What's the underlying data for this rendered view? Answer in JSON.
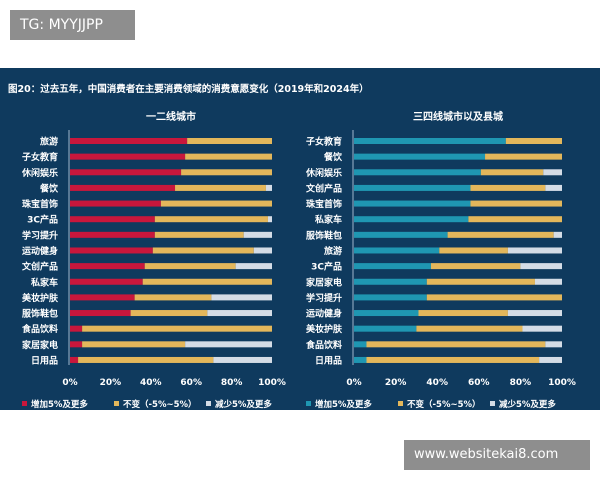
{
  "badge": "TG: MYYJJPP",
  "watermark": "www.websitekai8.com",
  "chart_data": {
    "title": "图20：过去五年，中国消费者在主要消费领域的消费意愿变化（2019年和2024年）",
    "type": "bar",
    "stacked": true,
    "orientation": "horizontal",
    "legend_labels": [
      "增加5%及更多",
      "不变（-5%~5%）",
      "减少5%及更多"
    ],
    "colors": {
      "background": "#0f3a5e",
      "increase_left": "#c8173c",
      "increase_right": "#1f97b2",
      "unchanged": "#e3b75b",
      "decrease": "#d4dce6"
    },
    "xticks": [
      "0%",
      "20%",
      "40%",
      "60%",
      "80%",
      "100%"
    ],
    "xlim": [
      0,
      100
    ],
    "panels": [
      {
        "subtitle": "一二线城市",
        "categories": [
          "旅游",
          "子女教育",
          "休闲娱乐",
          "餐饮",
          "珠宝首饰",
          "3C产品",
          "学习提升",
          "运动健身",
          "文创产品",
          "私家车",
          "美妆护肤",
          "服饰鞋包",
          "食品饮料",
          "家居家电",
          "日用品"
        ],
        "series": [
          {
            "name": "增加5%及更多",
            "values": [
              58,
              57,
              55,
              52,
              45,
              42,
              42,
              41,
              37,
              36,
              32,
              30,
              6,
              6,
              4
            ]
          },
          {
            "name": "不变（-5%~5%）",
            "values": [
              42,
              43,
              45,
              45,
              55,
              56,
              44,
              50,
              45,
              64,
              38,
              38,
              94,
              51,
              67
            ]
          },
          {
            "name": "减少5%及更多",
            "values": [
              0,
              0,
              0,
              3,
              0,
              2,
              14,
              9,
              18,
              0,
              30,
              32,
              0,
              43,
              29
            ]
          }
        ]
      },
      {
        "subtitle": "三四线城市以及县城",
        "categories": [
          "子女教育",
          "餐饮",
          "休闲娱乐",
          "文创产品",
          "珠宝首饰",
          "私家车",
          "服饰鞋包",
          "旅游",
          "3C产品",
          "家居家电",
          "学习提升",
          "运动健身",
          "美妆护肤",
          "食品饮料",
          "日用品"
        ],
        "series": [
          {
            "name": "增加5%及更多",
            "values": [
              73,
              63,
              61,
              56,
              56,
              55,
              45,
              41,
              37,
              35,
              35,
              31,
              30,
              6,
              6
            ]
          },
          {
            "name": "不变（-5%~5%）",
            "values": [
              27,
              37,
              30,
              36,
              44,
              45,
              51,
              33,
              43,
              52,
              65,
              43,
              51,
              86,
              83
            ]
          },
          {
            "name": "减少5%及更多",
            "values": [
              0,
              0,
              9,
              8,
              0,
              0,
              4,
              26,
              20,
              13,
              0,
              26,
              19,
              8,
              11
            ]
          }
        ]
      }
    ]
  }
}
